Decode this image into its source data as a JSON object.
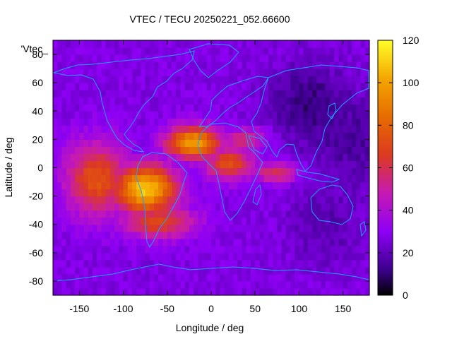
{
  "chart_data": {
    "type": "heatmap",
    "title": "VTEC / TECU 20250221_052.66600",
    "xlabel": "Longitude / deg",
    "ylabel": "Latitude / deg",
    "key_label": "'Vtec_",
    "xlim": [
      -180,
      180
    ],
    "ylim": [
      -90,
      90
    ],
    "xticks": [
      -150,
      -100,
      -50,
      0,
      50,
      100,
      150
    ],
    "yticks": [
      -80,
      -60,
      -40,
      -20,
      0,
      20,
      40,
      60,
      80
    ],
    "colorbar": {
      "min": 0,
      "max": 120,
      "ticks": [
        0,
        20,
        40,
        60,
        80,
        100,
        120
      ]
    },
    "grid_step_deg": 5,
    "background_tecu": 27,
    "features": [
      {
        "region": "south-atlantic-anomaly-core",
        "lon": -75,
        "lat": -15,
        "peak_tecu": 110,
        "spread_lon": 25,
        "spread_lat": 12
      },
      {
        "region": "north-crest-atlantic",
        "lon": -20,
        "lat": 18,
        "peak_tecu": 100,
        "spread_lon": 22,
        "spread_lat": 8
      },
      {
        "region": "eastern-pacific-lobe",
        "lon": -130,
        "lat": -8,
        "peak_tecu": 75,
        "spread_lon": 25,
        "spread_lat": 18
      },
      {
        "region": "equatorial-africa",
        "lon": 20,
        "lat": 3,
        "peak_tecu": 72,
        "spread_lon": 20,
        "spread_lat": 8
      },
      {
        "region": "indian-ocean-arm",
        "lon": 75,
        "lat": -3,
        "peak_tecu": 64,
        "spread_lon": 20,
        "spread_lat": 5
      },
      {
        "region": "south-atlantic-south",
        "lon": -60,
        "lat": -38,
        "peak_tecu": 70,
        "spread_lon": 30,
        "spread_lat": 8
      },
      {
        "region": "north-atlantic-tongue",
        "lon": 40,
        "lat": 20,
        "peak_tecu": 58,
        "spread_lon": 18,
        "spread_lat": 6
      }
    ],
    "low_regions": [
      {
        "region": "east-asia-night",
        "lon": 110,
        "lat": 45,
        "tecu": 10
      },
      {
        "region": "pacific-night",
        "lon": 160,
        "lat": 20,
        "tecu": 14
      },
      {
        "region": "australia-night",
        "lon": 130,
        "lat": -40,
        "tecu": 18
      }
    ]
  }
}
